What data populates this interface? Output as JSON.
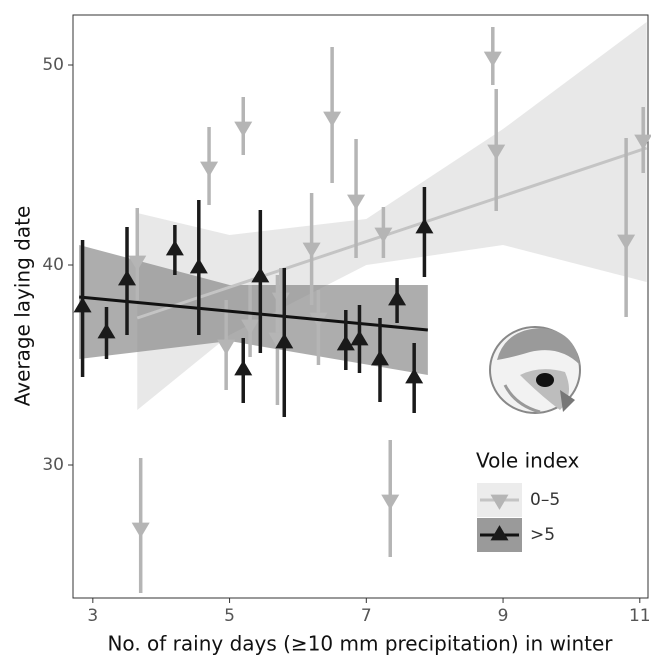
{
  "chart_data": {
    "type": "scatter",
    "xlabel": "No. of rainy days (≥10 mm precipitation) in winter",
    "ylabel": "Average laying date",
    "xlim": [
      2.71,
      11.12
    ],
    "ylim": [
      23.35,
      52.5
    ],
    "xticks": [
      3,
      5,
      7,
      9,
      11
    ],
    "yticks": [
      30,
      40,
      50
    ],
    "legend_title": "Vole index",
    "legend_position": "right",
    "series": [
      {
        "name": "0–5",
        "color": "#b5b5b5",
        "marker": "down",
        "line_color": "#c4c4c4",
        "band_color": "#e4e4e4",
        "key_background": "#ececec",
        "x": [
          3.7,
          3.65,
          4.7,
          4.95,
          5.2,
          5.3,
          5.75,
          5.7,
          6.2,
          6.3,
          6.5,
          6.85,
          7.25,
          7.35,
          8.85,
          8.9,
          10.8,
          11.05
        ],
        "values": [
          26.85,
          40.2,
          44.9,
          36,
          46.9,
          37,
          38.35,
          36.35,
          40.85,
          37.35,
          47.4,
          43.25,
          41.6,
          28.25,
          50.4,
          45.75,
          41.25,
          46.25
        ],
        "lower": [
          23.6,
          38.25,
          43,
          33.75,
          45.5,
          35.4,
          35.9,
          33,
          38,
          35,
          44.1,
          40.35,
          40.35,
          25.4,
          49,
          42.7,
          37.4,
          44.6
        ],
        "upper": [
          30.35,
          42.85,
          46.9,
          38.25,
          48.4,
          39,
          39.85,
          39.5,
          43.6,
          38.75,
          50.9,
          46.3,
          42.9,
          31.25,
          51.9,
          48.8,
          46.35,
          47.9
        ],
        "fit": {
          "x": [
            3.65,
            11.1
          ],
          "values": [
            37.35,
            45.85
          ]
        },
        "band": {
          "x": [
            3.65,
            5,
            7,
            9,
            11.1
          ],
          "lower": [
            32.75,
            36.5,
            40,
            41,
            39.15
          ],
          "upper": [
            42.6,
            41.5,
            42.3,
            46.8,
            52.15
          ]
        }
      },
      {
        "name": ">5",
        "color": "#1a1a1a",
        "marker": "up",
        "line_color": "#111111",
        "band_color": "#8a8a8a",
        "key_background": "#9a9a9a",
        "x": [
          2.85,
          3.2,
          3.5,
          4.2,
          4.55,
          5.2,
          5.45,
          5.8,
          6.7,
          6.9,
          7.2,
          7.45,
          7.7,
          7.85
        ],
        "values": [
          37.9,
          36.6,
          39.25,
          40.75,
          39.85,
          34.75,
          39.4,
          36.1,
          36,
          36.25,
          35.25,
          38.25,
          34.35,
          41.85
        ],
        "lower": [
          34.4,
          35.3,
          36.5,
          39.5,
          36.5,
          33.1,
          35.6,
          32.4,
          34.75,
          34.6,
          33.15,
          37.1,
          32.6,
          39.4
        ],
        "upper": [
          41.25,
          37.9,
          41.9,
          42,
          43.25,
          36.35,
          42.75,
          39.85,
          37.75,
          38,
          37.35,
          39.35,
          36.1,
          43.9
        ],
        "fit": {
          "x": [
            2.8,
            7.9
          ],
          "values": [
            38.4,
            36.75
          ]
        },
        "band": {
          "x": [
            2.8,
            5,
            7.9
          ],
          "lower": [
            35.3,
            36.2,
            34.5
          ],
          "upper": [
            41,
            39,
            39
          ]
        }
      }
    ]
  }
}
